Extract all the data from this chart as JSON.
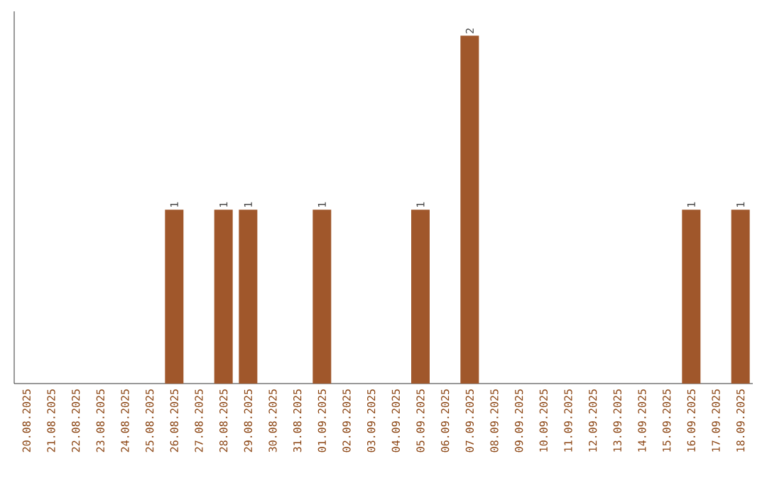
{
  "chart_data": {
    "type": "bar",
    "categories": [
      "20.08.2025",
      "21.08.2025",
      "22.08.2025",
      "23.08.2025",
      "24.08.2025",
      "25.08.2025",
      "26.08.2025",
      "27.08.2025",
      "28.08.2025",
      "29.08.2025",
      "30.08.2025",
      "31.08.2025",
      "01.09.2025",
      "02.09.2025",
      "03.09.2025",
      "04.09.2025",
      "05.09.2025",
      "06.09.2025",
      "07.09.2025",
      "08.09.2025",
      "09.09.2025",
      "10.09.2025",
      "11.09.2025",
      "12.09.2025",
      "13.09.2025",
      "14.09.2025",
      "15.09.2025",
      "16.09.2025",
      "17.09.2025",
      "18.09.2025"
    ],
    "values": [
      0,
      0,
      0,
      0,
      0,
      0,
      1,
      0,
      1,
      1,
      0,
      0,
      1,
      0,
      0,
      0,
      1,
      0,
      2,
      0,
      0,
      0,
      0,
      0,
      0,
      0,
      0,
      1,
      0,
      1
    ],
    "value_labels": [
      null,
      null,
      null,
      null,
      null,
      null,
      "1",
      null,
      "1",
      "1",
      null,
      null,
      "1",
      null,
      null,
      null,
      "1",
      null,
      "2",
      null,
      null,
      null,
      null,
      null,
      null,
      null,
      null,
      "1",
      null,
      "1"
    ],
    "color": "#a0572b"
  }
}
